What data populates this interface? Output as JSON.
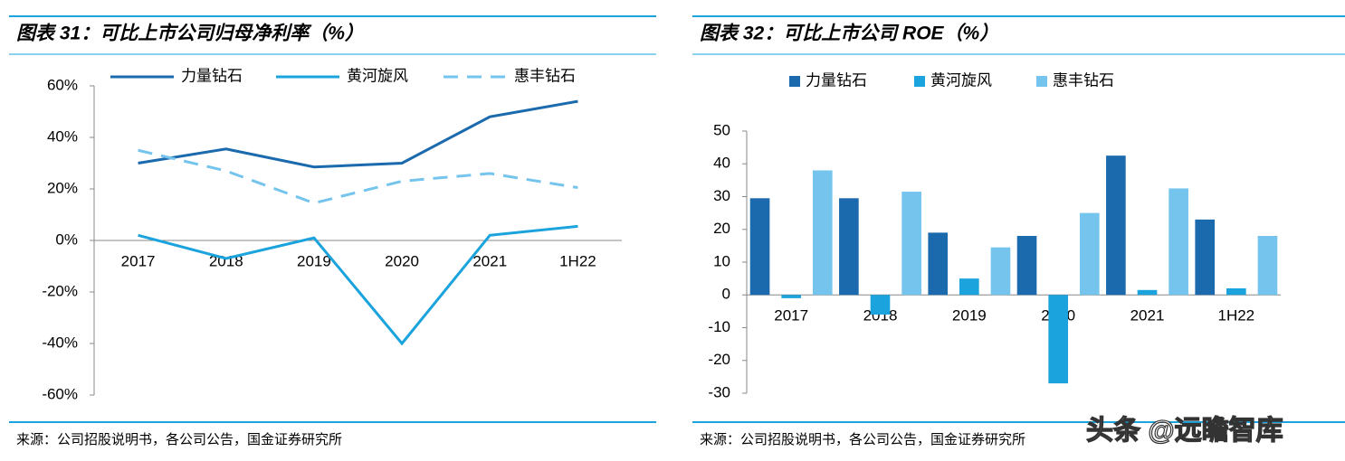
{
  "chart_data": [
    {
      "type": "line",
      "title": "图表 31：可比上市公司归母净利率（%）",
      "source": "来源：公司招股说明书，各公司公告，国金证券研究所",
      "categories": [
        "2017",
        "2018",
        "2019",
        "2020",
        "2021",
        "1H22"
      ],
      "series": [
        {
          "name": "力量钻石",
          "color": "#1a6aad",
          "dashed": false,
          "values": [
            30,
            35.5,
            28.5,
            30,
            48,
            54
          ]
        },
        {
          "name": "黄河旋风",
          "color": "#1aa3dc",
          "dashed": false,
          "values": [
            2,
            -7,
            1,
            -40,
            2,
            5.5
          ]
        },
        {
          "name": "惠丰钻石",
          "color": "#74c4ee",
          "dashed": true,
          "values": [
            35,
            27,
            14.5,
            23,
            26,
            20.5
          ]
        }
      ],
      "ylim": [
        -60,
        60
      ],
      "yticks": [
        {
          "value": 60,
          "label": "60%"
        },
        {
          "value": 40,
          "label": "40%"
        },
        {
          "value": 20,
          "label": "20%"
        },
        {
          "value": 0,
          "label": "0%"
        },
        {
          "value": -20,
          "label": "-20%"
        },
        {
          "value": -40,
          "label": "-40%"
        },
        {
          "value": -60,
          "label": "-60%"
        }
      ]
    },
    {
      "type": "bar",
      "title": "图表 32：可比上市公司 ROE（%）",
      "source": "来源：公司招股说明书，各公司公告，国金证券研究所",
      "categories": [
        "2017",
        "2018",
        "2019",
        "2020",
        "2021",
        "1H22"
      ],
      "series": [
        {
          "name": "力量钻石",
          "color": "#1a6aad",
          "values": [
            29.5,
            29.5,
            19,
            18,
            42.5,
            23
          ]
        },
        {
          "name": "黄河旋风",
          "color": "#1aa3dc",
          "values": [
            -1,
            -6,
            5,
            -27,
            1.5,
            2
          ]
        },
        {
          "name": "惠丰钻石",
          "color": "#74c4ee",
          "values": [
            38,
            31.5,
            14.5,
            25,
            32.5,
            18
          ]
        }
      ],
      "ylim": [
        -30,
        50
      ],
      "yticks": [
        50,
        40,
        30,
        20,
        10,
        0,
        -10,
        -20,
        -30
      ]
    }
  ],
  "watermark": "头条 @远瞻智库"
}
